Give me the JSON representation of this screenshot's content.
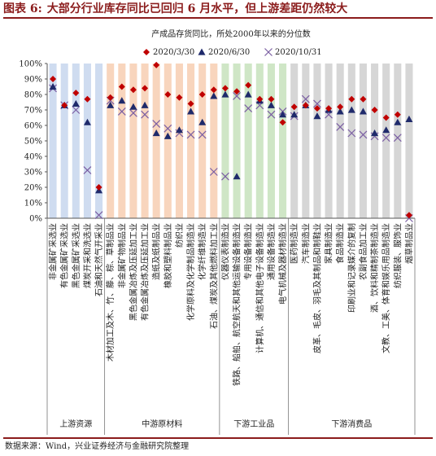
{
  "header": {
    "figure_label": "图表 6:",
    "title": "大部分行业库存同比已回归 6 月水平，但上游差距仍然较大"
  },
  "footer": {
    "source": "数据来源：Wind，兴业证券经济与金融研究院整理"
  },
  "colors": {
    "title": "#8b1c1c",
    "upstream_bg": "#cfdcf0",
    "midstream_bg": "#f8d5bd",
    "downstream_industrial_bg": "#cfe6c6",
    "downstream_consumer_bg": "#d6d6d6",
    "series_mar": "#c00000",
    "series_jun": "#1f2a6b",
    "series_oct": "#7b5fa3"
  },
  "chart_data": {
    "type": "scatter",
    "title": "产成品存货同比，所处2000年以来的分位数",
    "ylim": [
      0,
      100
    ],
    "yticks": [
      "0%",
      "10%",
      "20%",
      "30%",
      "40%",
      "50%",
      "60%",
      "70%",
      "80%",
      "90%",
      "100%"
    ],
    "legend_position": "top-center",
    "categories": [
      "非金属矿采选业",
      "有色金属矿采选业",
      "黑色金属矿采选业",
      "煤炭开采和洗选业",
      "石油和天然气开采业",
      "木材加工及木、竹、藤、棕、草制品业",
      "非金属矿物制品业",
      "黑色金属冶炼及压延加工业",
      "有色金属冶炼及压延加工业",
      "造纸及纸制品业",
      "橡胶和塑料制品业",
      "纺织业",
      "化学原料及化学制品制造业",
      "化学纤维制造业",
      "石油、煤炭及其他燃料加工业",
      "仪器仪表制造业",
      "铁路、船舶、航空航天和其他运输设备制造业",
      "专用设备制造业",
      "计算机、通信和其他电子设备制造业",
      "通用设备制造业",
      "电气机械及器材制造业",
      "医药制造业",
      "汽车制造业",
      "皮革、毛皮、羽毛及其制品和制鞋业",
      "家具制造业",
      "食品制造业",
      "印刷业和记录媒介的复制",
      "农副食品加工业",
      "酒、饮料和精制茶制造业",
      "文教、工美、体育和娱乐用品制造业",
      "纺织服装、服饰业",
      "烟草制品业"
    ],
    "groups": [
      {
        "label": "上游资源",
        "start": 0,
        "end": 4
      },
      {
        "label": "中游原材料",
        "start": 5,
        "end": 14
      },
      {
        "label": "下游工业品",
        "start": 15,
        "end": 20
      },
      {
        "label": "下游消费品",
        "start": 21,
        "end": 31
      }
    ],
    "series": [
      {
        "name": "2020/3/30",
        "marker": "diamond",
        "values": [
          90,
          73,
          81,
          77,
          20,
          78,
          85,
          83,
          84,
          99,
          80,
          78,
          74,
          80,
          83,
          84,
          82,
          86,
          77,
          77,
          62,
          72,
          73,
          71,
          71,
          72,
          77,
          77,
          70,
          65,
          67,
          2
        ]
      },
      {
        "name": "2020/6/30",
        "marker": "triangle",
        "values": [
          85,
          73,
          74,
          62,
          18,
          73,
          76,
          72,
          73,
          55,
          53,
          57,
          69,
          62,
          79,
          80,
          27,
          80,
          76,
          73,
          67,
          67,
          73,
          66,
          70,
          69,
          70,
          69,
          55,
          57,
          62,
          64
        ]
      },
      {
        "name": "2020/10/31",
        "marker": "x",
        "values": [
          84,
          73,
          70,
          31,
          2,
          76,
          69,
          68,
          67,
          61,
          58,
          55,
          54,
          54,
          30,
          27,
          79,
          71,
          73,
          67,
          69,
          66,
          77,
          74,
          67,
          59,
          55,
          54,
          53,
          52,
          52,
          0
        ]
      }
    ]
  }
}
